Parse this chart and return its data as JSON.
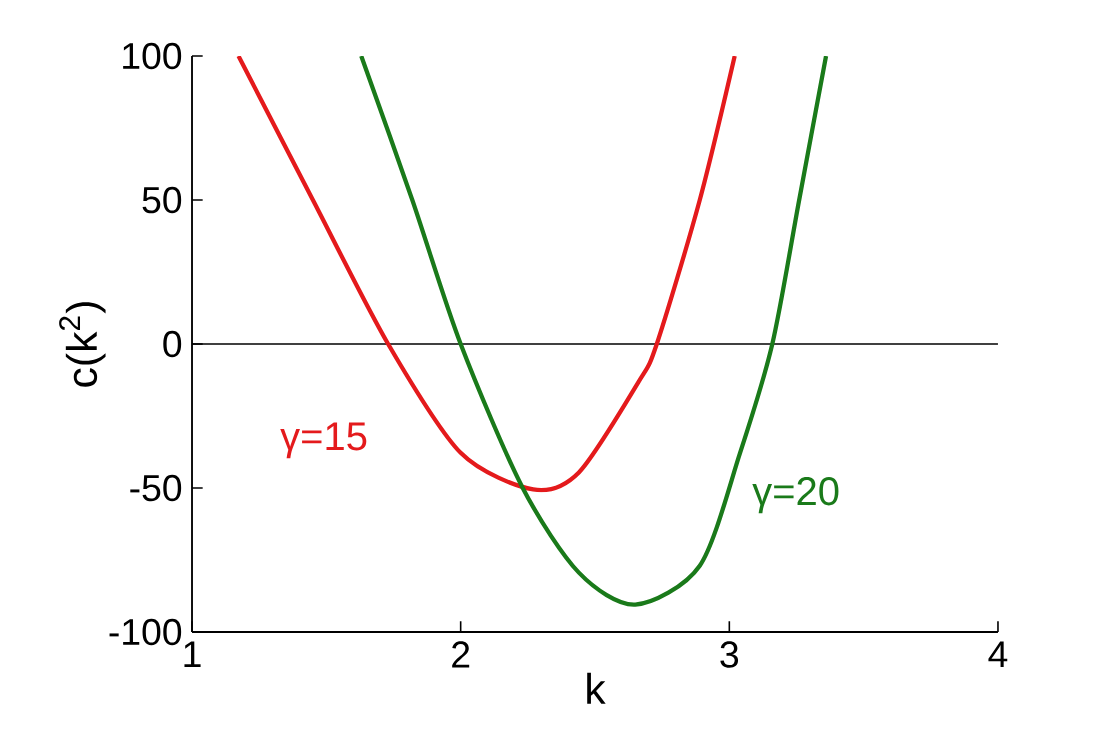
{
  "chart_data": {
    "type": "line",
    "xlabel": "k",
    "ylabel": "c(k$^{2}$)",
    "xlim": [
      1,
      4
    ],
    "ylim": [
      -100,
      100
    ],
    "xticks": [
      1,
      2,
      3,
      4
    ],
    "yticks": [
      -100,
      -50,
      0,
      50,
      100
    ],
    "grid": false,
    "legend": false,
    "marker": "none",
    "line_style": "solid",
    "ref_lines": [
      {
        "axis": "y",
        "value": 0,
        "color": "#000000"
      }
    ],
    "series": [
      {
        "name": "γ=15",
        "color": "#e41a1c",
        "x": [
          1.173,
          1.45,
          1.73,
          2.0,
          2.27,
          2.44,
          2.66,
          2.73,
          2.89,
          3.02
        ],
        "values": [
          100,
          50,
          0,
          -37.8,
          -50.5,
          -44.6,
          -13.5,
          0,
          50,
          100
        ]
      },
      {
        "name": "γ=20",
        "color": "#1a7a1a",
        "x": [
          1.63,
          1.82,
          2.0,
          2.23,
          2.44,
          2.65,
          2.89,
          3.04,
          3.16,
          3.26,
          3.36
        ],
        "values": [
          100,
          50,
          0,
          -49.8,
          -79.4,
          -90.5,
          -77,
          -37.8,
          0,
          50,
          100
        ]
      }
    ]
  }
}
